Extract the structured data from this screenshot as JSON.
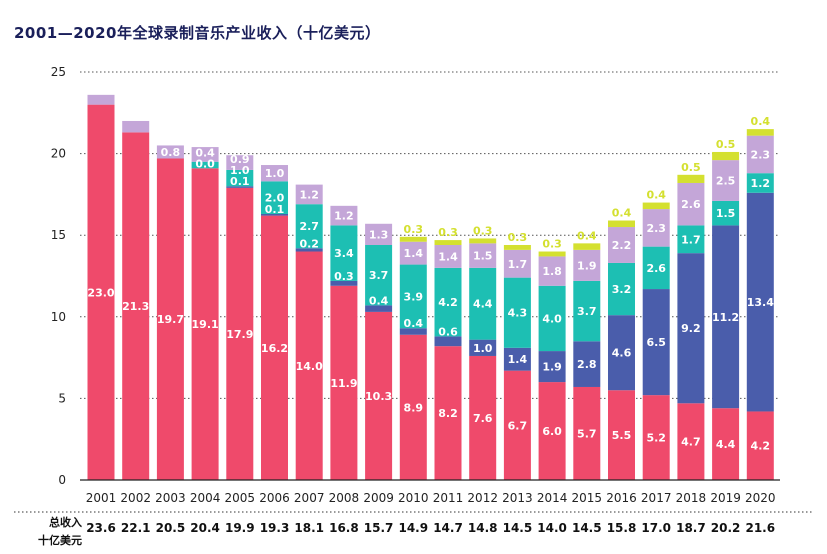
{
  "chart_data": {
    "type": "bar",
    "stacked": true,
    "title": "2001—2020年全球录制音乐产业收入（十亿美元）",
    "ylim": [
      0,
      25
    ],
    "yticks": [
      0,
      5,
      10,
      15,
      20,
      25
    ],
    "grid": true,
    "colors": {
      "physical": "#ef4a6b",
      "streaming": "#4a5dab",
      "downloads": "#1dbfb3",
      "performance": "#c4a6d8",
      "sync": "#d4e030",
      "grid": "#555555",
      "title": "#1a1f5a"
    },
    "categories": [
      "2001",
      "2002",
      "2003",
      "2004",
      "2005",
      "2006",
      "2007",
      "2008",
      "2009",
      "2010",
      "2011",
      "2012",
      "2013",
      "2014",
      "2015",
      "2016",
      "2017",
      "2018",
      "2019",
      "2020"
    ],
    "series": [
      {
        "key": "physical",
        "values": [
          23.0,
          21.3,
          19.7,
          19.1,
          17.9,
          16.2,
          14.0,
          11.9,
          10.3,
          8.9,
          8.2,
          7.6,
          6.7,
          6.0,
          5.7,
          5.5,
          5.2,
          4.7,
          4.4,
          4.2
        ]
      },
      {
        "key": "streaming",
        "values": [
          null,
          null,
          null,
          0.0,
          0.1,
          0.1,
          0.2,
          0.3,
          0.4,
          0.4,
          0.6,
          1.0,
          1.4,
          1.9,
          2.8,
          4.6,
          6.5,
          9.2,
          11.2,
          13.4
        ]
      },
      {
        "key": "downloads",
        "values": [
          null,
          null,
          null,
          0.4,
          1.0,
          2.0,
          2.7,
          3.4,
          3.7,
          3.9,
          4.2,
          4.4,
          4.3,
          4.0,
          3.7,
          3.2,
          2.6,
          1.7,
          1.5,
          1.2
        ]
      },
      {
        "key": "performance",
        "values": [
          0.6,
          0.7,
          0.8,
          0.9,
          0.9,
          1.0,
          1.2,
          1.2,
          1.3,
          1.4,
          1.4,
          1.5,
          1.7,
          1.8,
          1.9,
          2.2,
          2.3,
          2.6,
          2.5,
          2.3
        ]
      },
      {
        "key": "sync",
        "values": [
          null,
          null,
          null,
          null,
          null,
          null,
          null,
          null,
          null,
          0.3,
          0.3,
          0.3,
          0.3,
          0.3,
          0.4,
          0.4,
          0.4,
          0.5,
          0.5,
          0.4
        ]
      }
    ],
    "totals_label_line1": "总收入",
    "totals_label_line2": "十亿美元",
    "totals": [
      "23.6",
      "22.1",
      "20.5",
      "20.4",
      "19.9",
      "19.3",
      "18.1",
      "16.8",
      "15.7",
      "14.9",
      "14.7",
      "14.8",
      "14.5",
      "14.0",
      "14.5",
      "15.8",
      "17.0",
      "18.7",
      "20.2",
      "21.6"
    ]
  }
}
